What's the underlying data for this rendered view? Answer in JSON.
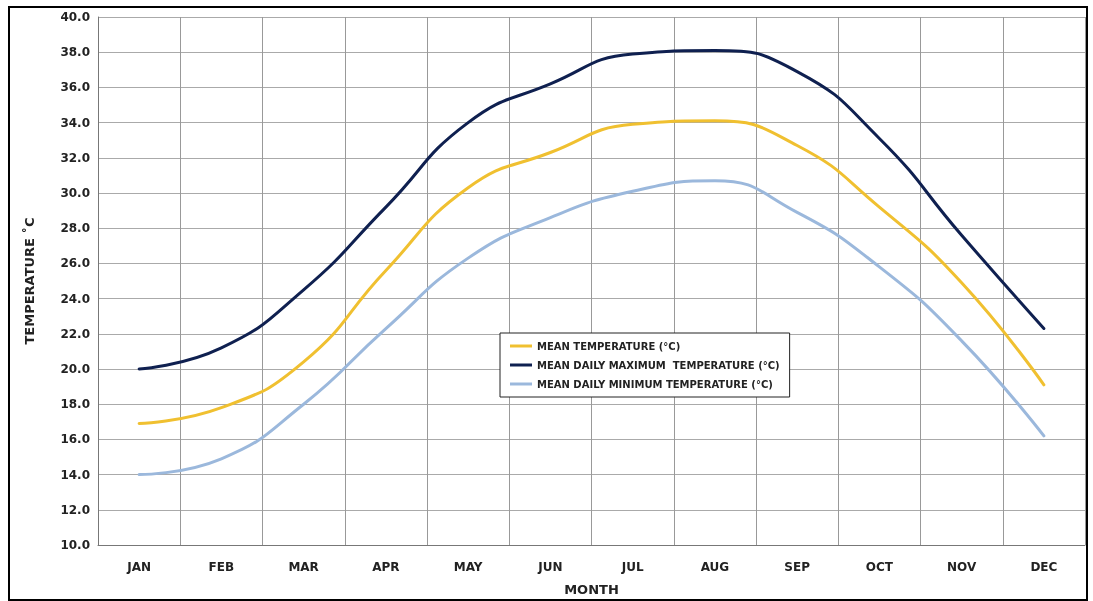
{
  "chart_data": {
    "type": "line",
    "xlabel": "MONTH",
    "ylabel": "TEMPERATURE ˚C",
    "categories": [
      "JAN",
      "FEB",
      "MAR",
      "APR",
      "MAY",
      "JUN",
      "JUL",
      "AUG",
      "SEP",
      "OCT",
      "NOV",
      "DEC"
    ],
    "series": [
      {
        "name": "MEAN TEMPERATURE (°C)",
        "color": "#f0c030",
        "values": [
          16.9,
          17.8,
          20.4,
          25.6,
          30.3,
          32.3,
          33.9,
          34.1,
          32.7,
          29.2,
          24.9,
          19.1
        ]
      },
      {
        "name": "MEAN DAILY MAXIMUM  TEMPERATURE (°C)",
        "color": "#0f2050",
        "values": [
          20.0,
          21.2,
          24.5,
          29.2,
          34.0,
          36.2,
          37.9,
          38.1,
          36.9,
          33.1,
          27.6,
          22.3
        ]
      },
      {
        "name": "MEAN DAILY MINIMUM TEMPERATURE (°C)",
        "color": "#9bb8dc",
        "values": [
          14.0,
          14.9,
          18.0,
          22.3,
          26.3,
          28.6,
          30.1,
          30.7,
          28.9,
          25.8,
          21.6,
          16.2
        ]
      }
    ],
    "ylim": [
      10,
      40
    ],
    "yticks": [
      {
        "value": 10,
        "label": "10.0"
      },
      {
        "value": 12,
        "label": "12.0"
      },
      {
        "value": 14,
        "label": "14.0"
      },
      {
        "value": 16,
        "label": "16.0"
      },
      {
        "value": 18,
        "label": "18.0"
      },
      {
        "value": 20,
        "label": "20.0"
      },
      {
        "value": 22,
        "label": "22.0"
      },
      {
        "value": 24,
        "label": "24.0"
      },
      {
        "value": 26,
        "label": "26.0"
      },
      {
        "value": 28,
        "label": "28.0"
      },
      {
        "value": 30,
        "label": "30.0"
      },
      {
        "value": 32,
        "label": "32.0"
      },
      {
        "value": 34,
        "label": "34.0"
      },
      {
        "value": 36,
        "label": "36.0"
      },
      {
        "value": 38,
        "label": "38.0"
      },
      {
        "value": 40,
        "label": "40.0"
      }
    ],
    "grid": true,
    "legend": "center",
    "marker": "none",
    "line_style": "solid"
  }
}
